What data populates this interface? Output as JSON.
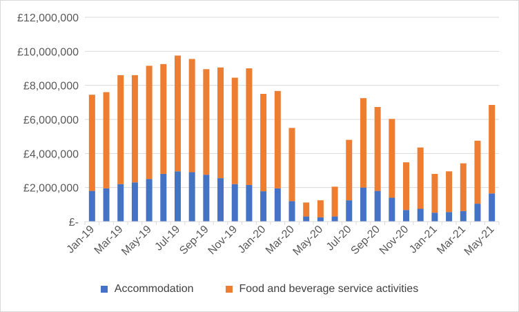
{
  "chart_data": {
    "type": "bar",
    "stacked": true,
    "title": "",
    "xlabel": "",
    "ylabel": "",
    "ylim": [
      0,
      12000000
    ],
    "y_tick_values": [
      0,
      2000000,
      4000000,
      6000000,
      8000000,
      10000000,
      12000000
    ],
    "y_tick_labels": [
      "£-",
      "£2,000,000",
      "£4,000,000",
      "£6,000,000",
      "£8,000,000",
      "£10,000,000",
      "£12,000,000"
    ],
    "grid": "horizontal",
    "legend_position": "bottom",
    "categories": [
      "Jan-19",
      "Feb-19",
      "Mar-19",
      "Apr-19",
      "May-19",
      "Jun-19",
      "Jul-19",
      "Aug-19",
      "Sep-19",
      "Oct-19",
      "Nov-19",
      "Dec-19",
      "Jan-20",
      "Feb-20",
      "Mar-20",
      "Apr-20",
      "May-20",
      "Jun-20",
      "Jul-20",
      "Aug-20",
      "Sep-20",
      "Oct-20",
      "Nov-20",
      "Dec-20",
      "Jan-21",
      "Feb-21",
      "Mar-21",
      "Apr-21",
      "May-21"
    ],
    "x_tick_labels": [
      "Jan-19",
      "",
      "Mar-19",
      "",
      "May-19",
      "",
      "Jul-19",
      "",
      "Sep-19",
      "",
      "Nov-19",
      "",
      "Jan-20",
      "",
      "Mar-20",
      "",
      "May-20",
      "",
      "Jul-20",
      "",
      "Sep-20",
      "",
      "Nov-20",
      "",
      "Jan-21",
      "",
      "Mar-21",
      "",
      "May-21"
    ],
    "series": [
      {
        "name": "Accommodation",
        "color": "#4472C4",
        "values": [
          1800000,
          1950000,
          2200000,
          2300000,
          2500000,
          2800000,
          2950000,
          2900000,
          2750000,
          2550000,
          2200000,
          2150000,
          1780000,
          1950000,
          1200000,
          300000,
          250000,
          300000,
          1250000,
          2000000,
          1800000,
          1400000,
          680000,
          750000,
          520000,
          560000,
          620000,
          1050000,
          1650000
        ]
      },
      {
        "name": "Food and beverage service activities",
        "color": "#ED7D31",
        "values": [
          5650000,
          5650000,
          6400000,
          6300000,
          6650000,
          6450000,
          6800000,
          6650000,
          6200000,
          6500000,
          6250000,
          6850000,
          5720000,
          5720000,
          4300000,
          820000,
          1000000,
          1750000,
          3550000,
          5250000,
          4930000,
          4630000,
          2800000,
          3600000,
          2280000,
          2390000,
          2800000,
          3700000,
          5200000
        ]
      }
    ]
  }
}
